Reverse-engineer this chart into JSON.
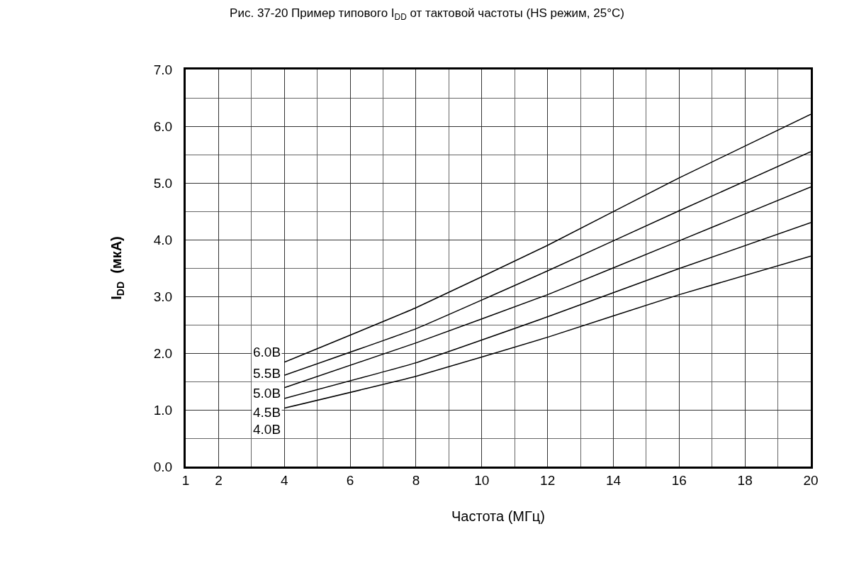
{
  "chart_data": {
    "type": "line",
    "title": "Рис. 37-20 Пример типового I$_{DD}$ от тактовой частоты (HS режим, 25°C)",
    "xlabel": "Частота (МГц)",
    "ylabel": "I$_{DD}$  (мкА)",
    "x": [
      4,
      8,
      12,
      16,
      20
    ],
    "series": [
      {
        "name": "6.0B",
        "color": "#000000",
        "values": [
          1.84,
          2.8,
          3.9,
          5.09,
          6.21
        ]
      },
      {
        "name": "5.5B",
        "color": "#000000",
        "values": [
          1.61,
          2.43,
          3.45,
          4.51,
          5.55
        ]
      },
      {
        "name": "5.0B",
        "color": "#000000",
        "values": [
          1.39,
          2.18,
          3.03,
          3.98,
          4.93
        ]
      },
      {
        "name": "4.5B",
        "color": "#000000",
        "values": [
          1.2,
          1.83,
          2.64,
          3.49,
          4.3
        ]
      },
      {
        "name": "4.0B",
        "color": "#000000",
        "values": [
          1.03,
          1.59,
          2.28,
          3.03,
          3.71
        ]
      }
    ],
    "xlim": [
      1,
      20
    ],
    "xticks": [
      1,
      2,
      4,
      6,
      8,
      10,
      12,
      14,
      16,
      18,
      20
    ],
    "ylim": [
      0,
      7
    ],
    "yticks": [
      {
        "value": 0,
        "label": "0.0"
      },
      {
        "value": 1,
        "label": "1.0"
      },
      {
        "value": 2,
        "label": "2.0"
      },
      {
        "value": 3,
        "label": "3.0"
      },
      {
        "value": 4,
        "label": "4.0"
      },
      {
        "value": 5,
        "label": "5.0"
      },
      {
        "value": 6,
        "label": "6.0"
      },
      {
        "value": 7,
        "label": "7.0"
      }
    ],
    "grid": true,
    "legend": false,
    "marker": "none",
    "line_style": "solid"
  }
}
